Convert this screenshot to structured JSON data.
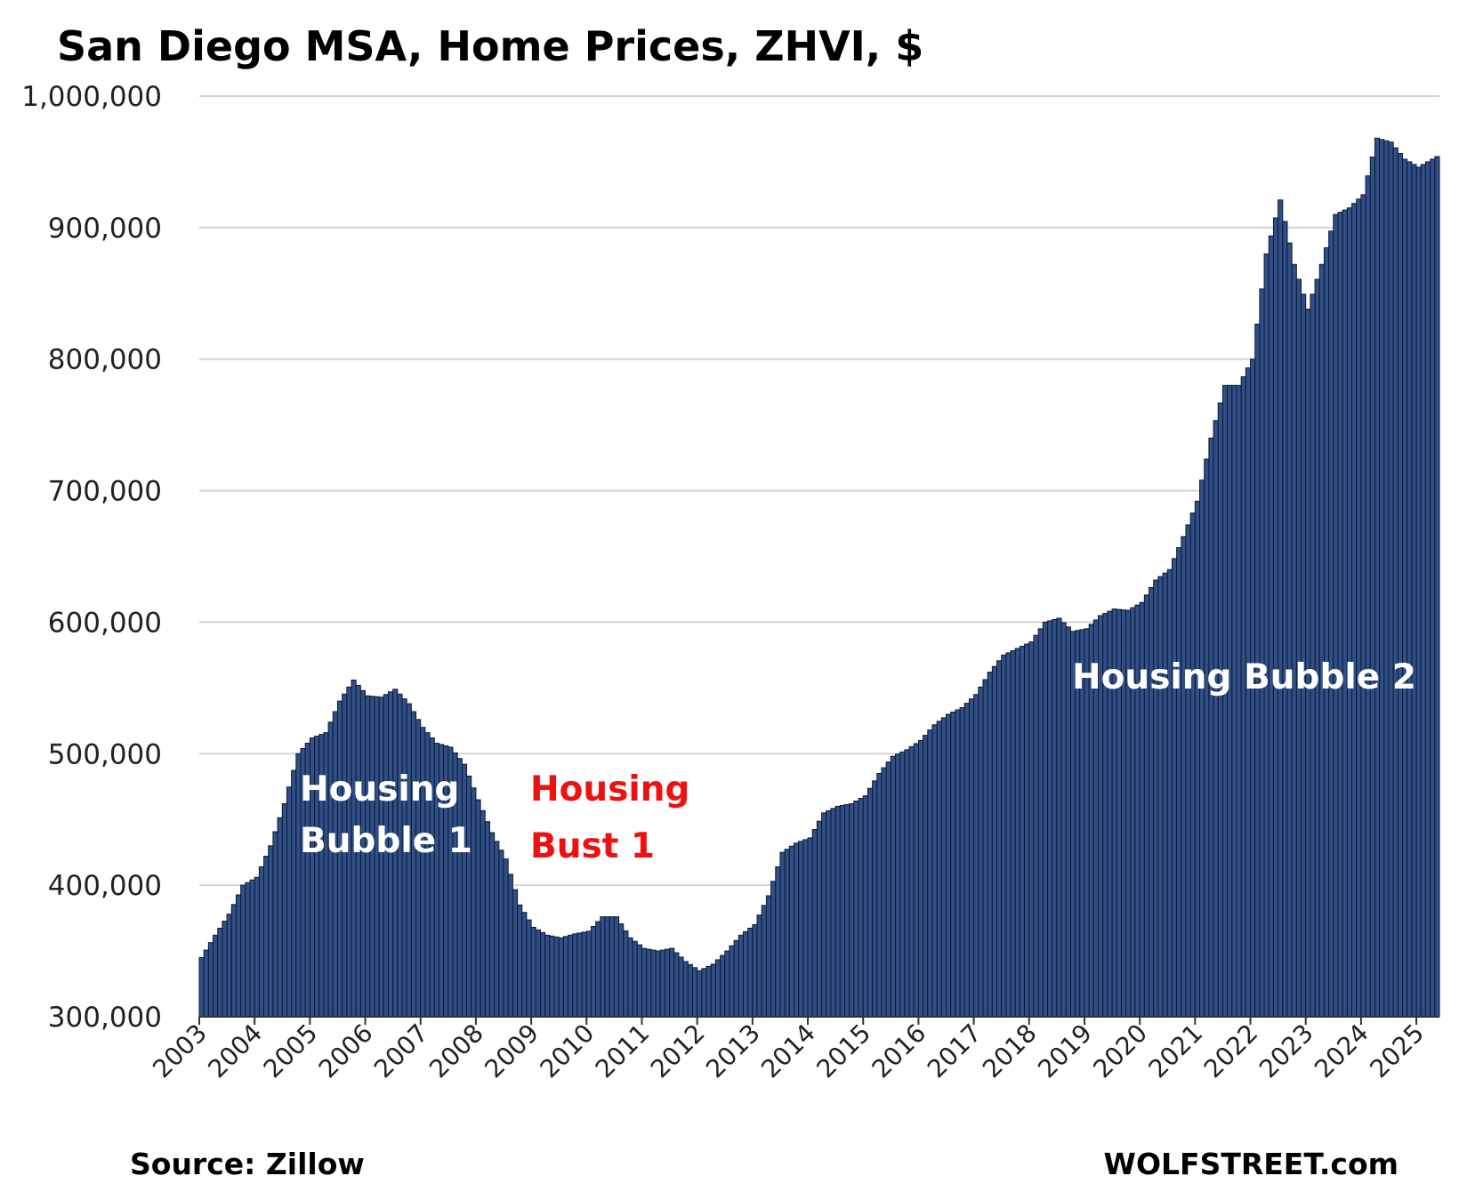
{
  "chart_data": {
    "type": "bar",
    "title": "San Diego MSA, Home Prices, ZHVI, $",
    "source": "Source: Zillow",
    "credit": "WOLFSTREET.com",
    "ylim": [
      300000,
      1000000
    ],
    "yticks": [
      "300,000",
      "400,000",
      "500,000",
      "600,000",
      "700,000",
      "800,000",
      "900,000",
      "1,000,000"
    ],
    "xticks": [
      "2003",
      "2004",
      "2005",
      "2006",
      "2007",
      "2008",
      "2009",
      "2010",
      "2011",
      "2012",
      "2013",
      "2014",
      "2015",
      "2016",
      "2017",
      "2018",
      "2019",
      "2020",
      "2021",
      "2022",
      "2023",
      "2024",
      "2025"
    ],
    "grid": true,
    "frequency": "monthly",
    "start": "2003-01",
    "end": "2025-05",
    "bar_color": "#2f4f86",
    "bar_edge_color": "#0e1a33",
    "keyframes": [
      [
        "2003-01",
        345000
      ],
      [
        "2003-04",
        362000
      ],
      [
        "2003-07",
        378000
      ],
      [
        "2003-10",
        400000
      ],
      [
        "2004-01",
        406000
      ],
      [
        "2004-04",
        430000
      ],
      [
        "2004-07",
        462000
      ],
      [
        "2004-10",
        500000
      ],
      [
        "2005-01",
        512000
      ],
      [
        "2005-04",
        516000
      ],
      [
        "2005-07",
        540000
      ],
      [
        "2005-10",
        556000
      ],
      [
        "2006-01",
        544000
      ],
      [
        "2006-04",
        543000
      ],
      [
        "2006-07",
        549000
      ],
      [
        "2006-10",
        538000
      ],
      [
        "2007-01",
        520000
      ],
      [
        "2007-04",
        508000
      ],
      [
        "2007-07",
        505000
      ],
      [
        "2007-10",
        492000
      ],
      [
        "2008-01",
        465000
      ],
      [
        "2008-04",
        440000
      ],
      [
        "2008-07",
        420000
      ],
      [
        "2008-10",
        385000
      ],
      [
        "2009-01",
        368000
      ],
      [
        "2009-04",
        362000
      ],
      [
        "2009-07",
        360000
      ],
      [
        "2009-10",
        363000
      ],
      [
        "2010-01",
        365000
      ],
      [
        "2010-04",
        376000
      ],
      [
        "2010-07",
        376000
      ],
      [
        "2010-10",
        360000
      ],
      [
        "2011-01",
        352000
      ],
      [
        "2011-04",
        350000
      ],
      [
        "2011-07",
        352000
      ],
      [
        "2011-10",
        342000
      ],
      [
        "2012-01",
        335000
      ],
      [
        "2012-04",
        340000
      ],
      [
        "2012-07",
        350000
      ],
      [
        "2012-10",
        362000
      ],
      [
        "2013-01",
        370000
      ],
      [
        "2013-04",
        392000
      ],
      [
        "2013-07",
        425000
      ],
      [
        "2013-10",
        432000
      ],
      [
        "2014-01",
        436000
      ],
      [
        "2014-04",
        455000
      ],
      [
        "2014-07",
        460000
      ],
      [
        "2014-10",
        462000
      ],
      [
        "2015-01",
        468000
      ],
      [
        "2015-04",
        485000
      ],
      [
        "2015-07",
        498000
      ],
      [
        "2015-10",
        503000
      ],
      [
        "2016-01",
        510000
      ],
      [
        "2016-04",
        522000
      ],
      [
        "2016-07",
        530000
      ],
      [
        "2016-10",
        535000
      ],
      [
        "2017-01",
        545000
      ],
      [
        "2017-04",
        562000
      ],
      [
        "2017-07",
        575000
      ],
      [
        "2017-10",
        580000
      ],
      [
        "2018-01",
        585000
      ],
      [
        "2018-04",
        600000
      ],
      [
        "2018-07",
        603000
      ],
      [
        "2018-10",
        593000
      ],
      [
        "2019-01",
        595000
      ],
      [
        "2019-04",
        605000
      ],
      [
        "2019-07",
        610000
      ],
      [
        "2019-10",
        609000
      ],
      [
        "2020-01",
        615000
      ],
      [
        "2020-04",
        632000
      ],
      [
        "2020-07",
        640000
      ],
      [
        "2020-10",
        665000
      ],
      [
        "2021-01",
        692000
      ],
      [
        "2021-04",
        740000
      ],
      [
        "2021-07",
        780000
      ],
      [
        "2021-10",
        780000
      ],
      [
        "2022-01",
        800000
      ],
      [
        "2022-04",
        880000
      ],
      [
        "2022-07",
        921000
      ],
      [
        "2022-10",
        872000
      ],
      [
        "2023-01",
        838000
      ],
      [
        "2023-04",
        872000
      ],
      [
        "2023-07",
        910000
      ],
      [
        "2023-10",
        915000
      ],
      [
        "2024-01",
        925000
      ],
      [
        "2024-04",
        968000
      ],
      [
        "2024-07",
        965000
      ],
      [
        "2024-10",
        952000
      ],
      [
        "2025-01",
        946000
      ],
      [
        "2025-05",
        954000
      ]
    ],
    "annotations": [
      {
        "text": "Housing",
        "color": "#ffffff"
      },
      {
        "text": "Bubble 1",
        "color": "#ffffff"
      },
      {
        "text": "Housing",
        "color": "#ee1111"
      },
      {
        "text": "Bust 1",
        "color": "#ee1111"
      },
      {
        "text": "Housing Bubble 2",
        "color": "#ffffff"
      }
    ]
  }
}
